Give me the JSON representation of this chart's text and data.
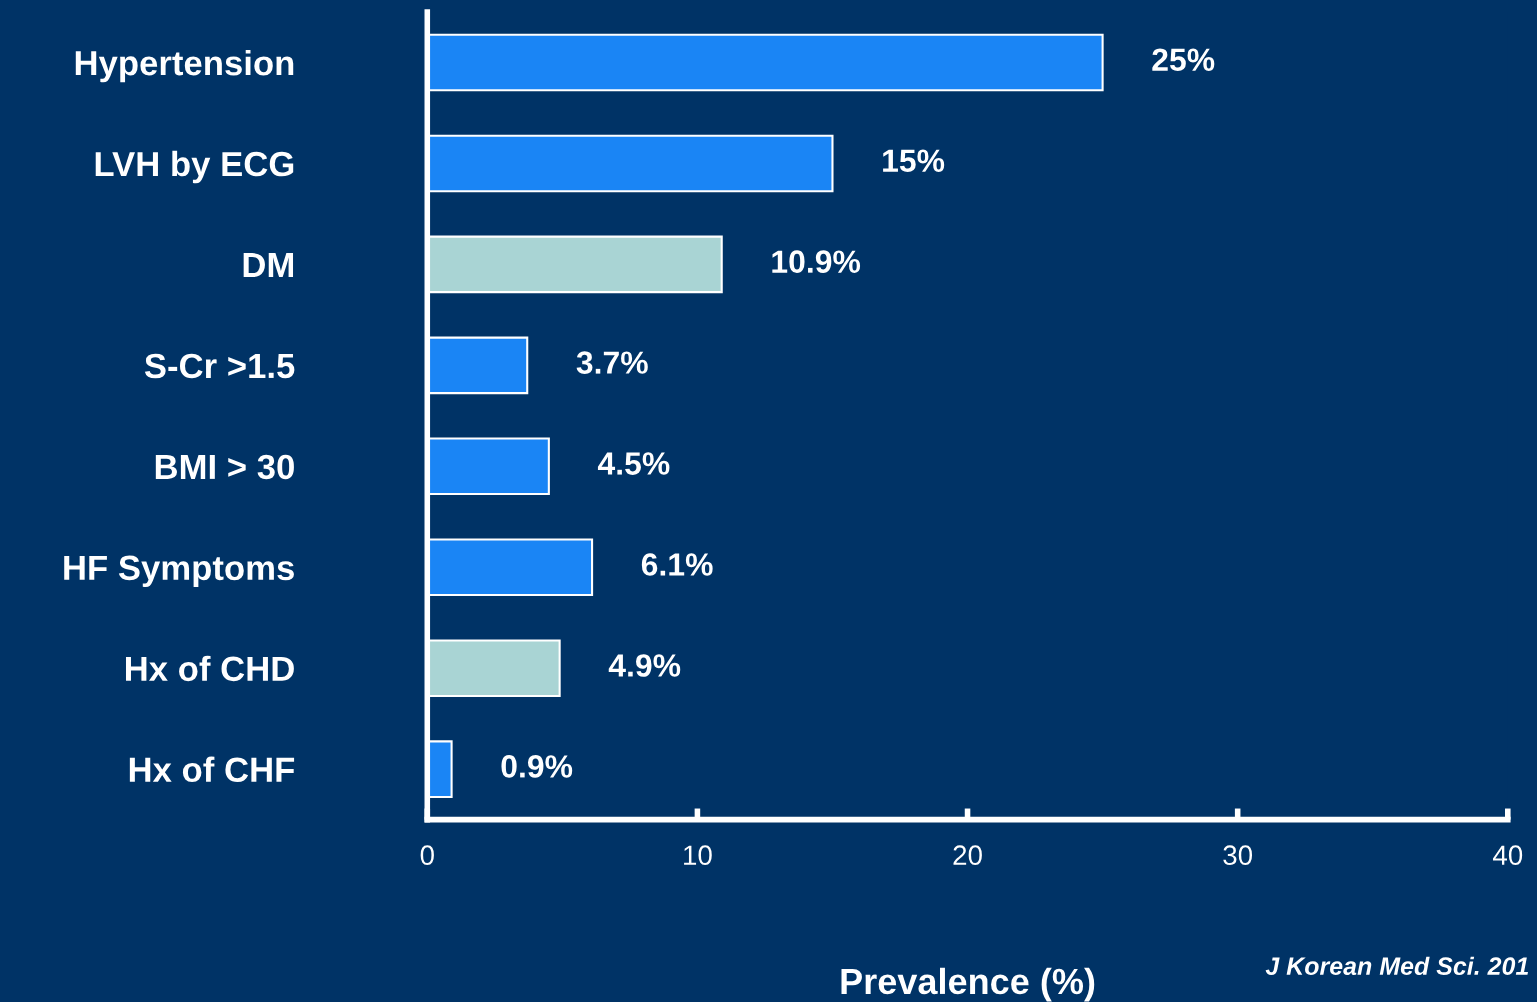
{
  "chart_data": {
    "type": "bar",
    "orientation": "horizontal",
    "xlabel": "Prevalence (%)",
    "categories": [
      "Hypertension",
      "LVH by ECG",
      "DM",
      "S-Cr >1.5",
      "BMI > 30",
      "HF Symptoms",
      "Hx of CHD",
      "Hx of CHF"
    ],
    "values": [
      25,
      15,
      10.9,
      3.7,
      4.5,
      6.1,
      4.9,
      0.9
    ],
    "value_labels": [
      "25%",
      "15%",
      "10.9%",
      "3.7%",
      "4.5%",
      "6.1%",
      "4.9%",
      "0.9%"
    ],
    "colors": [
      "#1a85f5",
      "#1a85f5",
      "#a9d4d4",
      "#1a85f5",
      "#1a85f5",
      "#1a85f5",
      "#a9d4d4",
      "#1a85f5"
    ],
    "xlim": [
      0,
      40
    ],
    "xticks": [
      0,
      10,
      20,
      30,
      40
    ],
    "grid": false,
    "legend": false,
    "annotations": [
      "J Korean Med Sci. 201"
    ]
  }
}
